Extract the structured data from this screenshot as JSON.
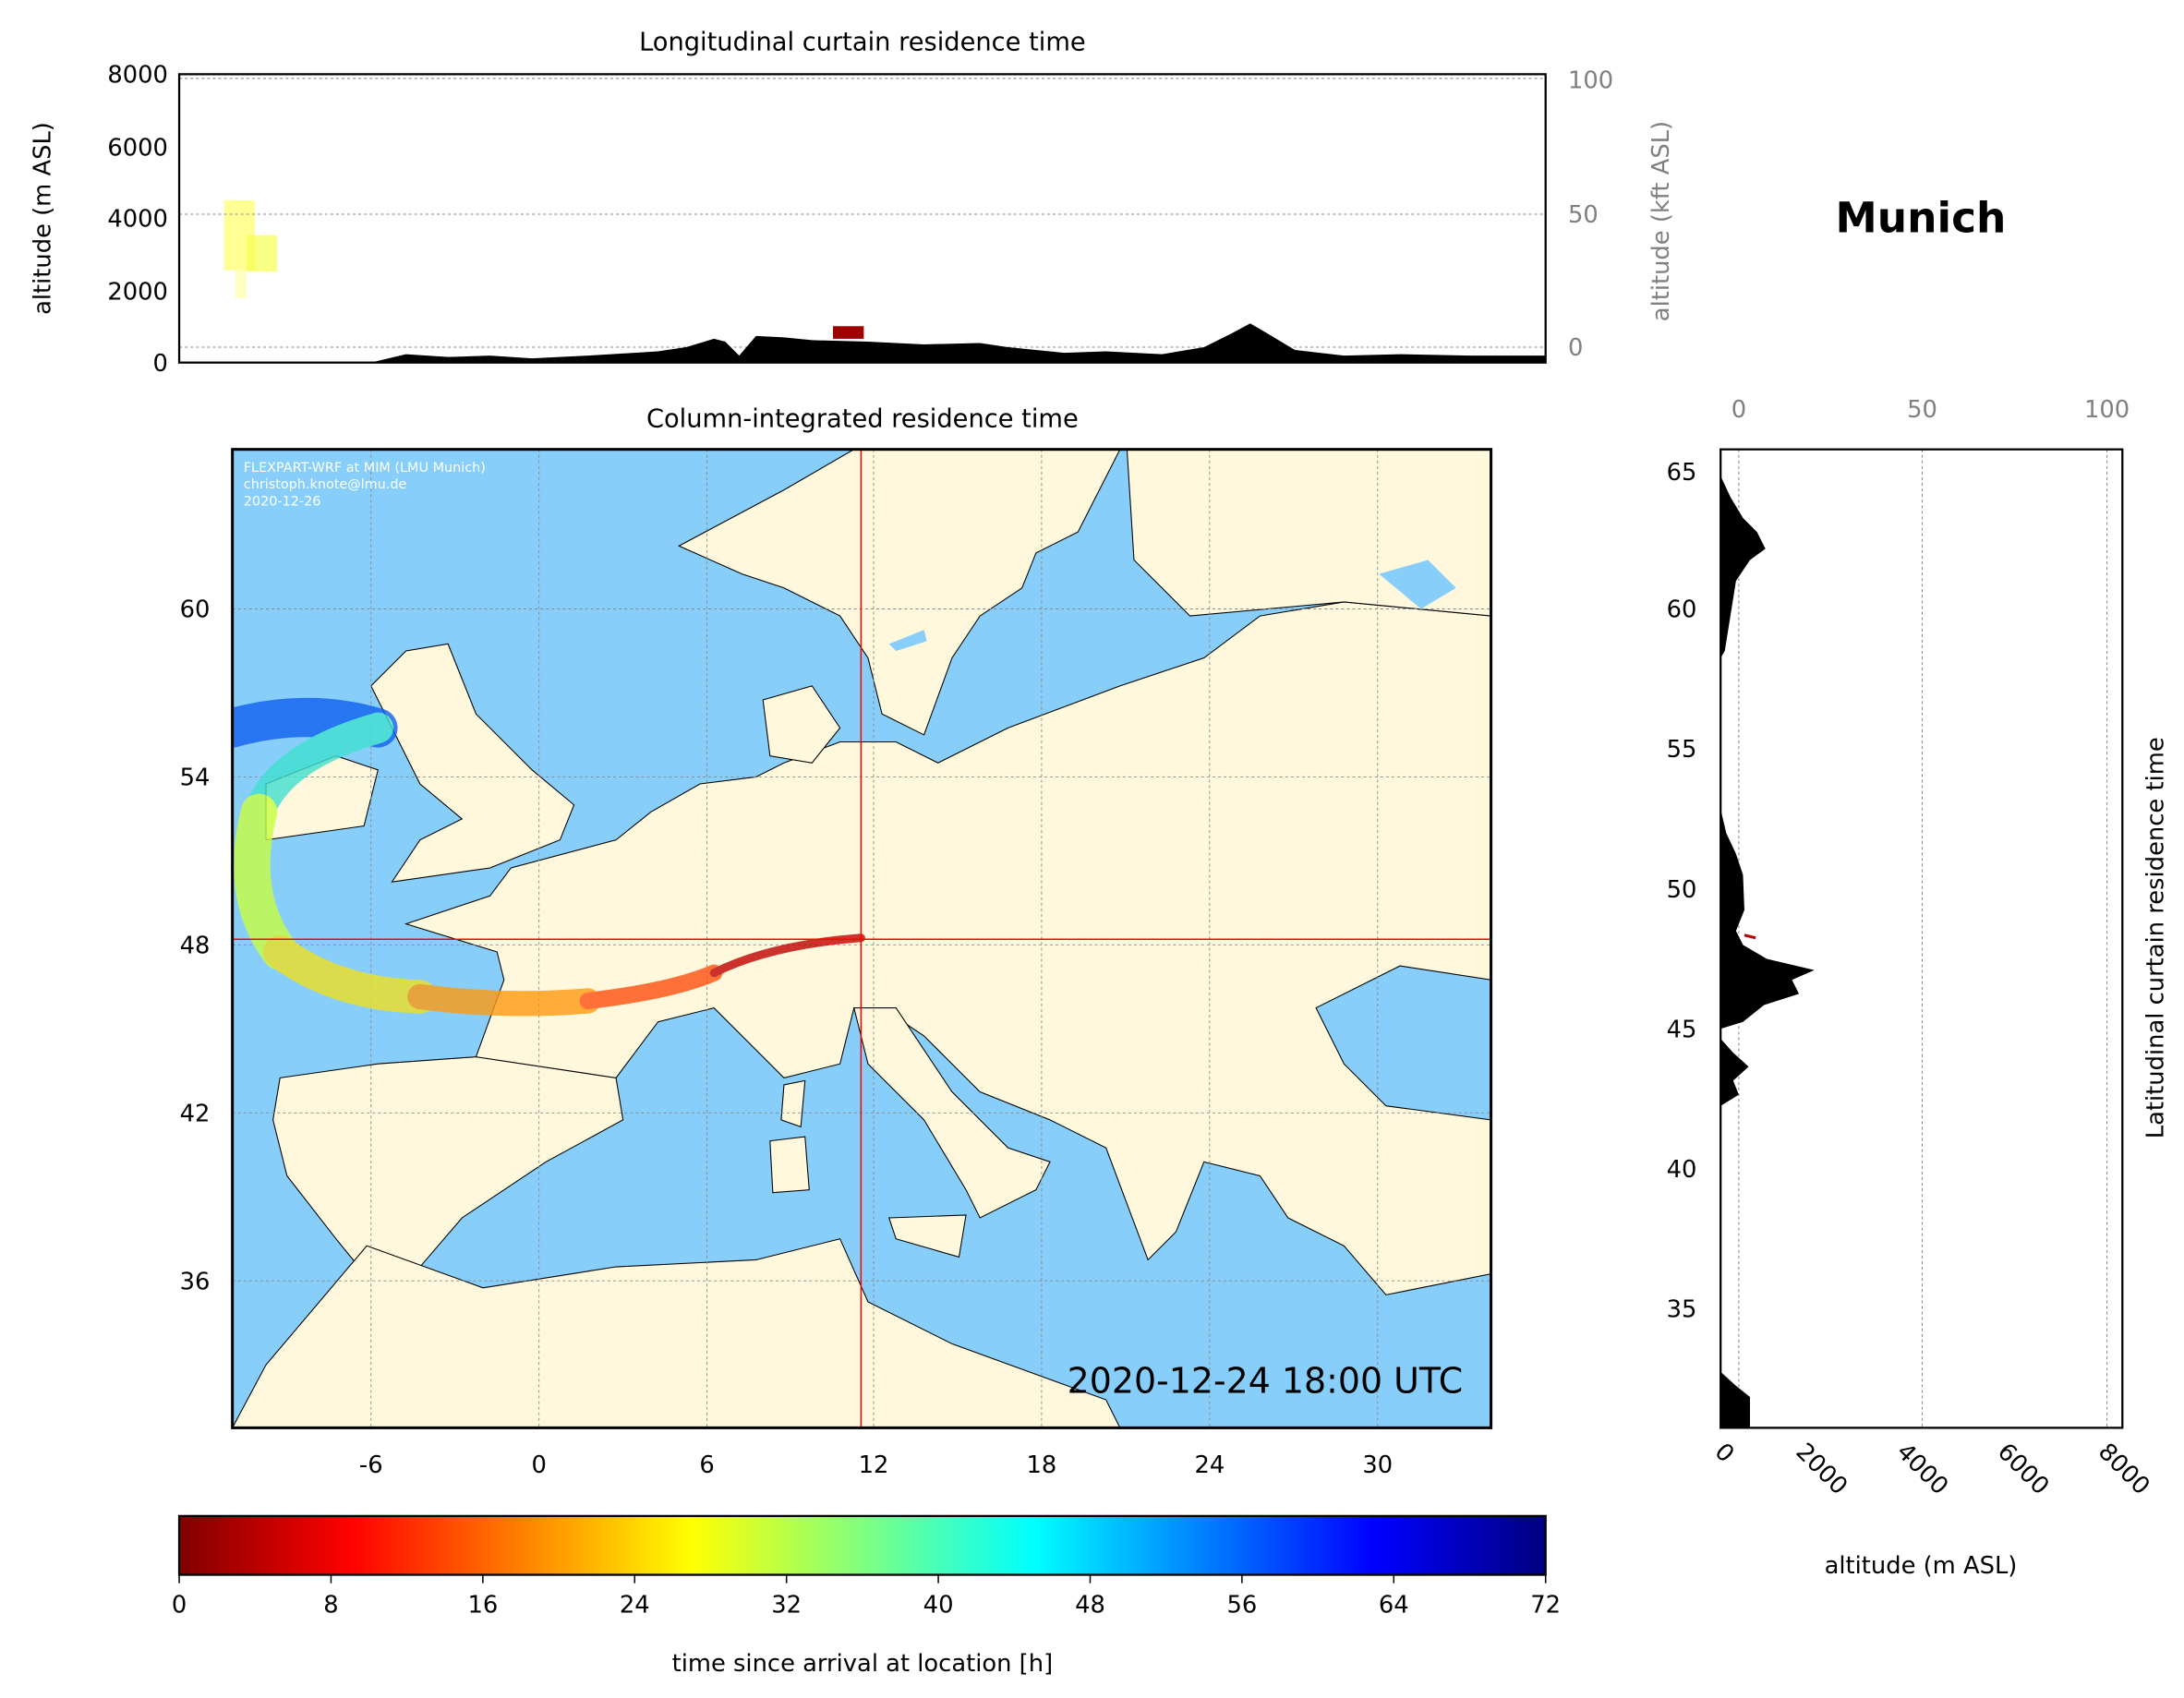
{
  "location_title": "Munich",
  "chart_data": [
    {
      "type": "area",
      "title": "Longitudinal curtain residence time",
      "ylabel": "altitude (m ASL)",
      "ylabel_right": "altitude (kft ASL)",
      "ylim": [
        0,
        8000
      ],
      "yticks": [
        "0",
        "2000",
        "4000",
        "6000",
        "8000"
      ],
      "yticks_right": [
        "0",
        "50",
        "100"
      ],
      "grid": true
    },
    {
      "type": "heatmap",
      "title": "Column-integrated residence time",
      "xlim": [
        -11,
        34
      ],
      "ylim": [
        30.75,
        65.7
      ],
      "xticks": [
        "-6",
        "0",
        "6",
        "12",
        "18",
        "24",
        "30"
      ],
      "yticks": [
        "60",
        "54",
        "48",
        "42",
        "36"
      ],
      "crosshair": {
        "lon": 11.5,
        "lat": 48.15,
        "color": "#ff0000"
      },
      "timestamp": "2020-12-24 18:00 UTC",
      "credit": [
        "FLEXPART-WRF at MIM (LMU Munich)",
        "christoph.knote@lmu.de",
        "2020-12-26"
      ],
      "colors": {
        "sea": "#87cefa",
        "land": "#fff8dc"
      },
      "grid": true
    },
    {
      "type": "area",
      "title": "Latitudinal curtain residence time",
      "xlabel": "altitude (m ASL)",
      "xlim": [
        0,
        8000
      ],
      "xticks": [
        "0",
        "2000",
        "4000",
        "6000",
        "8000"
      ],
      "xticks_top": [
        "0",
        "50",
        "100"
      ],
      "yticks": [
        "65",
        "60",
        "55",
        "50",
        "45",
        "40",
        "35"
      ],
      "grid": true
    },
    {
      "type": "colorbar",
      "label": "time since arrival at location [h]",
      "range": [
        0,
        72
      ],
      "ticks": [
        "0",
        "8",
        "16",
        "24",
        "32",
        "40",
        "48",
        "56",
        "64",
        "72"
      ],
      "colormap": "jet_r"
    }
  ]
}
